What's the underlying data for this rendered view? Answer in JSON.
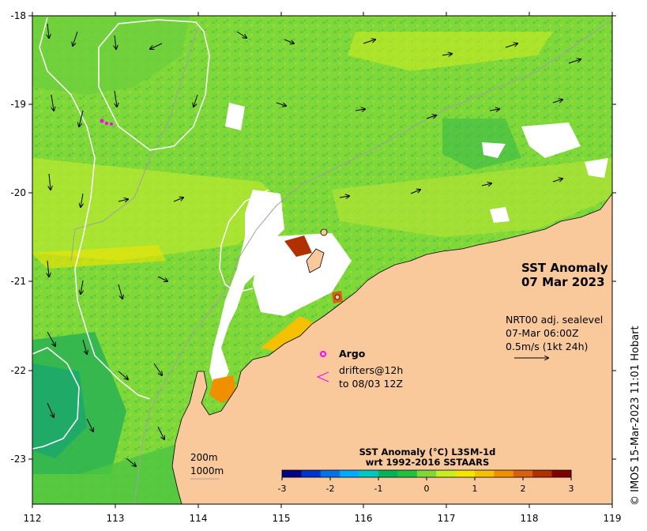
{
  "map": {
    "title_line1": "SST Anomaly",
    "title_line2": "07 Mar 2023",
    "longitude_ticks": [
      "112",
      "113",
      "114",
      "115",
      "116",
      "117",
      "118",
      "119"
    ],
    "latitude_ticks": [
      "-18",
      "-19",
      "-20",
      "-21",
      "-22",
      "-23"
    ],
    "lon_range": [
      112,
      119
    ],
    "lat_range": [
      -23.5,
      -18
    ],
    "land_color": "#f9c99c",
    "ocean_base_color": "#7fd83a",
    "contour_color": "#ffffff",
    "bathymetry_color": "#a0a0a0"
  },
  "currents_info": {
    "line1": "NRT00 adj. sealevel",
    "line2": "07-Mar 06:00Z",
    "line3": "0.5m/s (1kt 24h)"
  },
  "legend": {
    "argo_label": "Argo",
    "argo_color": "#ff00ff",
    "drifters_line1": "drifters@12h",
    "drifters_line2": "to 08/03 12Z",
    "drifters_color": "#ff00ff"
  },
  "depth_contours": {
    "label1": "200m",
    "label2": "1000m"
  },
  "colorbar": {
    "title_line1": "SST Anomaly (°C) L3SM-1d",
    "title_line2": "wrt 1992-2016 SSTAARS",
    "ticks": [
      "-3",
      "-2",
      "-1",
      "0",
      "1",
      "2",
      "3"
    ],
    "colors": [
      "#000080",
      "#0033cc",
      "#0073e6",
      "#00aaff",
      "#00c8c0",
      "#00b35a",
      "#20c040",
      "#7fd83a",
      "#c8ec20",
      "#f2e500",
      "#f5c000",
      "#f09000",
      "#d86010",
      "#b03000",
      "#800000"
    ]
  },
  "credit": "© IMOS 15-Mar-2023 11:01 Hobart"
}
